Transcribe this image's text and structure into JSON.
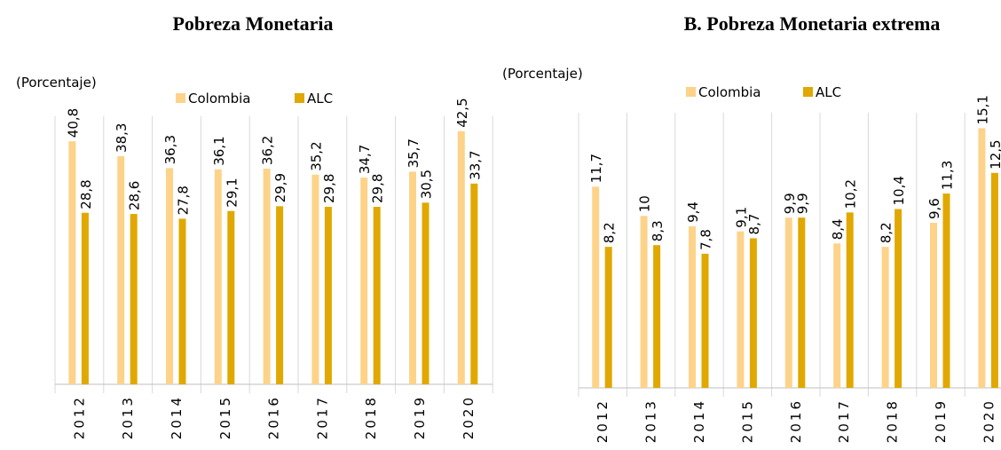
{
  "chart_data": [
    {
      "type": "bar",
      "title": "Pobreza Monetaria",
      "y_label": "(Porcentaje)",
      "categories": [
        "2012",
        "2013",
        "2014",
        "2015",
        "2016",
        "2017",
        "2018",
        "2019",
        "2020"
      ],
      "series": [
        {
          "name": "Colombia",
          "color": "#fdd38a",
          "values": [
            40.8,
            38.3,
            36.3,
            36.1,
            36.2,
            35.2,
            34.7,
            35.7,
            42.5
          ],
          "value_labels": [
            "40,8",
            "38,3",
            "36,3",
            "36,1",
            "36,2",
            "35,2",
            "34,7",
            "35,7",
            "42,5"
          ]
        },
        {
          "name": "ALC",
          "color": "#e0a800",
          "values": [
            28.8,
            28.6,
            27.8,
            29.1,
            29.9,
            29.8,
            29.8,
            30.5,
            33.7
          ],
          "value_labels": [
            "28,8",
            "28,6",
            "27,8",
            "29,1",
            "29,9",
            "29,8",
            "29,8",
            "30,5",
            "33,7"
          ]
        }
      ],
      "ylim": [
        0,
        45
      ]
    },
    {
      "type": "bar",
      "title": "B. Pobreza Monetaria extrema",
      "y_label": "(Porcentaje)",
      "categories": [
        "2012",
        "2013",
        "2014",
        "2015",
        "2016",
        "2017",
        "2018",
        "2019",
        "2020"
      ],
      "series": [
        {
          "name": "Colombia",
          "color": "#fdd38a",
          "values": [
            11.7,
            10,
            9.4,
            9.1,
            9.9,
            8.4,
            8.2,
            9.6,
            15.1
          ],
          "value_labels": [
            "11,7",
            "10",
            "9,4",
            "9,1",
            "9,9",
            "8,4",
            "8,2",
            "9,6",
            "15,1"
          ]
        },
        {
          "name": "ALC",
          "color": "#e0a800",
          "values": [
            8.2,
            8.3,
            7.8,
            8.7,
            9.9,
            10.2,
            10.4,
            11.3,
            12.5
          ],
          "value_labels": [
            "8,2",
            "8,3",
            "7,8",
            "8,7",
            "9,9",
            "10,2",
            "10,4",
            "11,3",
            "12,5"
          ]
        }
      ],
      "ylim": [
        0,
        16
      ]
    }
  ]
}
